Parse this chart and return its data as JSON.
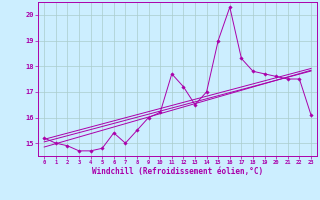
{
  "xlabel": "Windchill (Refroidissement éolien,°C)",
  "bg_color": "#cceeff",
  "grid_color": "#aacccc",
  "line_color": "#aa00aa",
  "x_data": [
    0,
    1,
    2,
    3,
    4,
    5,
    6,
    7,
    8,
    9,
    10,
    11,
    12,
    13,
    14,
    15,
    16,
    17,
    18,
    19,
    20,
    21,
    22,
    23
  ],
  "y_main": [
    15.2,
    15.0,
    14.9,
    14.7,
    14.7,
    14.8,
    15.4,
    15.0,
    15.5,
    16.0,
    16.2,
    17.7,
    17.2,
    16.5,
    17.0,
    19.0,
    20.3,
    18.3,
    17.8,
    17.7,
    17.6,
    17.5,
    17.5,
    16.1
  ],
  "y_reg_top": [
    15.15,
    15.27,
    15.39,
    15.51,
    15.63,
    15.75,
    15.87,
    15.99,
    16.11,
    16.23,
    16.35,
    16.47,
    16.59,
    16.71,
    16.83,
    16.95,
    17.07,
    17.19,
    17.31,
    17.43,
    17.55,
    17.67,
    17.79,
    17.91
  ],
  "y_reg_mid": [
    15.05,
    15.17,
    15.29,
    15.41,
    15.53,
    15.65,
    15.77,
    15.89,
    16.01,
    16.13,
    16.25,
    16.37,
    16.49,
    16.61,
    16.73,
    16.85,
    16.97,
    17.09,
    17.21,
    17.33,
    17.45,
    17.57,
    17.69,
    17.81
  ],
  "y_reg_bot": [
    14.85,
    14.98,
    15.11,
    15.24,
    15.37,
    15.5,
    15.63,
    15.76,
    15.89,
    16.02,
    16.15,
    16.28,
    16.41,
    16.54,
    16.67,
    16.8,
    16.93,
    17.06,
    17.19,
    17.32,
    17.45,
    17.58,
    17.71,
    17.84
  ],
  "ylim": [
    14.5,
    20.5
  ],
  "xlim": [
    -0.5,
    23.5
  ],
  "yticks": [
    15,
    16,
    17,
    18,
    19,
    20
  ],
  "xticks": [
    0,
    1,
    2,
    3,
    4,
    5,
    6,
    7,
    8,
    9,
    10,
    11,
    12,
    13,
    14,
    15,
    16,
    17,
    18,
    19,
    20,
    21,
    22,
    23
  ]
}
